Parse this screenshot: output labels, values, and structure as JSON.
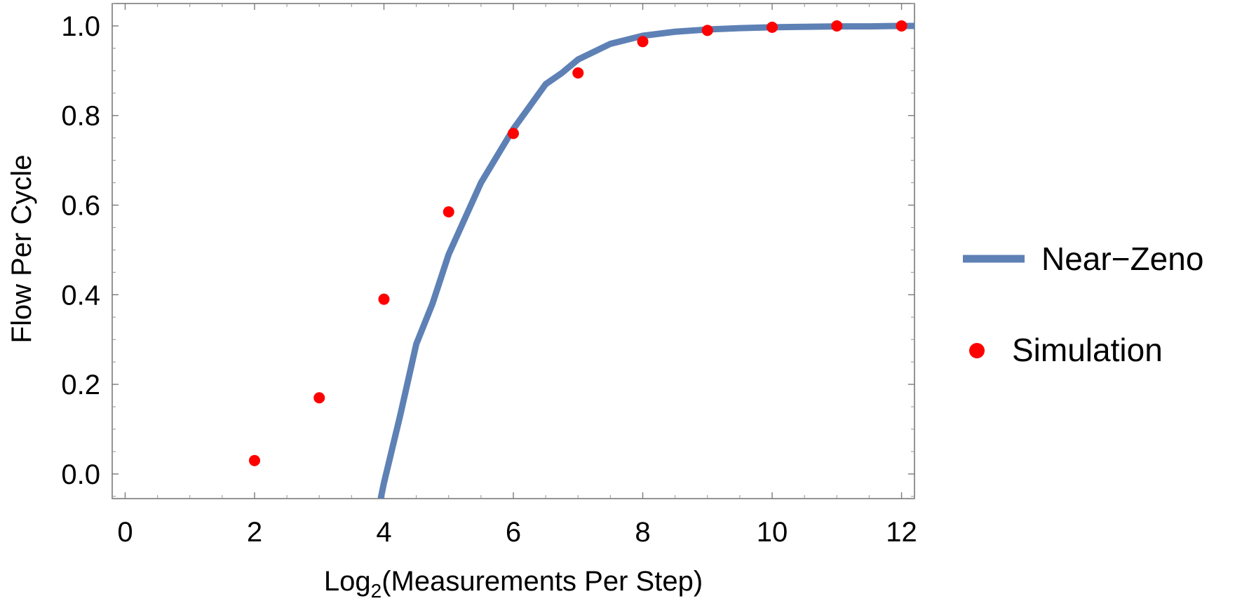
{
  "chart_data": {
    "type": "line",
    "xlabel_prefix": "Log",
    "xlabel_subscript": "2",
    "xlabel_suffix": "(Measurements Per Step)",
    "ylabel": "Flow Per Cycle",
    "xlim": [
      -0.2,
      12.2
    ],
    "ylim": [
      -0.055,
      1.05
    ],
    "x_ticks": [
      0,
      2,
      4,
      6,
      8,
      10,
      12
    ],
    "y_ticks": [
      0.0,
      0.2,
      0.4,
      0.6,
      0.8,
      1.0
    ],
    "y_tick_labels": [
      "0.0",
      "0.2",
      "0.4",
      "0.6",
      "0.8",
      "1.0"
    ],
    "legend_position": "right",
    "series": [
      {
        "name": "Near−Zeno",
        "kind": "line",
        "color": "#5e81b5",
        "x": [
          3.95,
          4.0,
          4.25,
          4.5,
          4.75,
          5.0,
          5.25,
          5.5,
          5.75,
          6.0,
          6.25,
          6.5,
          6.75,
          7.0,
          7.5,
          8.0,
          8.5,
          9.0,
          9.5,
          10.0,
          10.5,
          11.0,
          11.5,
          12.0,
          12.2
        ],
        "y": [
          -0.055,
          -0.02,
          0.13,
          0.29,
          0.38,
          0.49,
          0.57,
          0.65,
          0.71,
          0.77,
          0.82,
          0.87,
          0.895,
          0.925,
          0.96,
          0.978,
          0.987,
          0.992,
          0.995,
          0.997,
          0.998,
          0.999,
          0.999,
          1.0,
          1.0
        ]
      },
      {
        "name": "Simulation",
        "kind": "scatter",
        "color": "#ff0000",
        "x": [
          2,
          3,
          4,
          5,
          6,
          7,
          8,
          9,
          10,
          11,
          12
        ],
        "y": [
          0.03,
          0.17,
          0.39,
          0.585,
          0.76,
          0.895,
          0.965,
          0.99,
          0.997,
          1.0,
          1.0
        ]
      }
    ]
  }
}
